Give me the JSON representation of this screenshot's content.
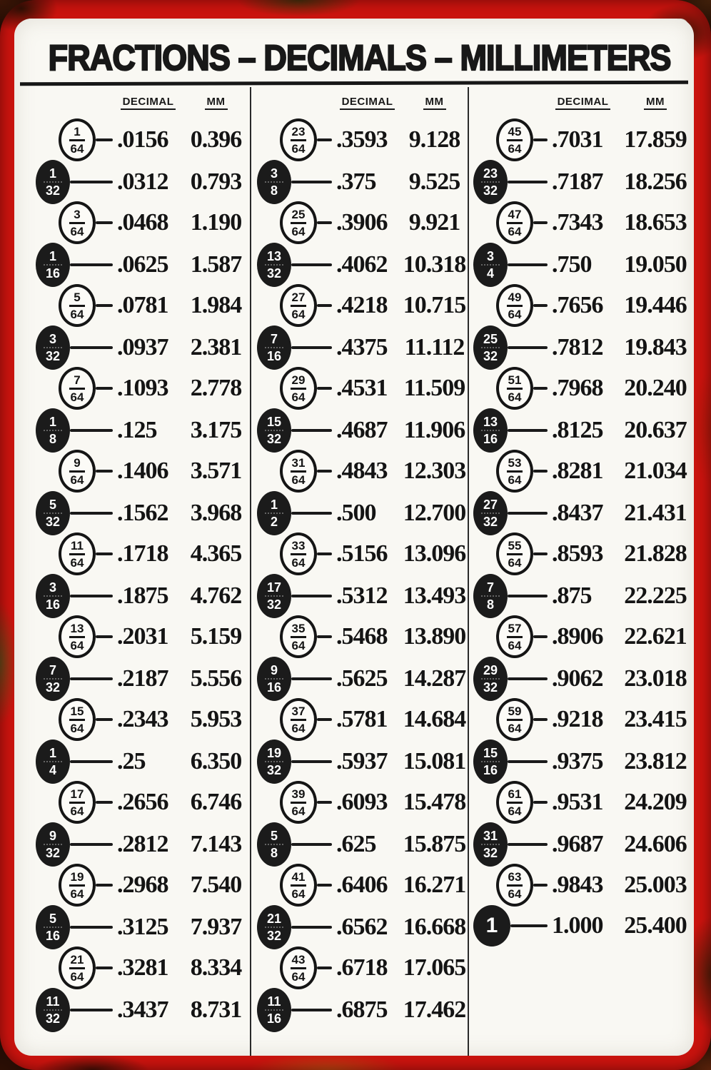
{
  "sign": {
    "title": "FRACTIONS – DECIMALS – MILLIMETERS",
    "col_headers": {
      "decimal": "DECIMAL",
      "mm": "MM"
    },
    "colors": {
      "frame_red": "#c9130e",
      "panel": "#f9f8f3",
      "ink": "#171717"
    },
    "columns": [
      {
        "rows": [
          {
            "num": "1",
            "den": "64",
            "style": "open",
            "decimal": ".0156",
            "mm": "0.396"
          },
          {
            "num": "1",
            "den": "32",
            "style": "filled",
            "decimal": ".0312",
            "mm": "0.793"
          },
          {
            "num": "3",
            "den": "64",
            "style": "open",
            "decimal": ".0468",
            "mm": "1.190"
          },
          {
            "num": "1",
            "den": "16",
            "style": "filled",
            "decimal": ".0625",
            "mm": "1.587"
          },
          {
            "num": "5",
            "den": "64",
            "style": "open",
            "decimal": ".0781",
            "mm": "1.984"
          },
          {
            "num": "3",
            "den": "32",
            "style": "filled",
            "decimal": ".0937",
            "mm": "2.381"
          },
          {
            "num": "7",
            "den": "64",
            "style": "open",
            "decimal": ".1093",
            "mm": "2.778"
          },
          {
            "num": "1",
            "den": "8",
            "style": "filled",
            "decimal": ".125",
            "mm": "3.175"
          },
          {
            "num": "9",
            "den": "64",
            "style": "open",
            "decimal": ".1406",
            "mm": "3.571"
          },
          {
            "num": "5",
            "den": "32",
            "style": "filled",
            "decimal": ".1562",
            "mm": "3.968"
          },
          {
            "num": "11",
            "den": "64",
            "style": "open",
            "decimal": ".1718",
            "mm": "4.365"
          },
          {
            "num": "3",
            "den": "16",
            "style": "filled",
            "decimal": ".1875",
            "mm": "4.762"
          },
          {
            "num": "13",
            "den": "64",
            "style": "open",
            "decimal": ".2031",
            "mm": "5.159"
          },
          {
            "num": "7",
            "den": "32",
            "style": "filled",
            "decimal": ".2187",
            "mm": "5.556"
          },
          {
            "num": "15",
            "den": "64",
            "style": "open",
            "decimal": ".2343",
            "mm": "5.953"
          },
          {
            "num": "1",
            "den": "4",
            "style": "filled",
            "decimal": ".25",
            "mm": "6.350"
          },
          {
            "num": "17",
            "den": "64",
            "style": "open",
            "decimal": ".2656",
            "mm": "6.746"
          },
          {
            "num": "9",
            "den": "32",
            "style": "filled",
            "decimal": ".2812",
            "mm": "7.143"
          },
          {
            "num": "19",
            "den": "64",
            "style": "open",
            "decimal": ".2968",
            "mm": "7.540"
          },
          {
            "num": "5",
            "den": "16",
            "style": "filled",
            "decimal": ".3125",
            "mm": "7.937"
          },
          {
            "num": "21",
            "den": "64",
            "style": "open",
            "decimal": ".3281",
            "mm": "8.334"
          },
          {
            "num": "11",
            "den": "32",
            "style": "filled",
            "decimal": ".3437",
            "mm": "8.731"
          }
        ]
      },
      {
        "rows": [
          {
            "num": "23",
            "den": "64",
            "style": "open",
            "decimal": ".3593",
            "mm": "9.128"
          },
          {
            "num": "3",
            "den": "8",
            "style": "filled",
            "decimal": ".375",
            "mm": "9.525"
          },
          {
            "num": "25",
            "den": "64",
            "style": "open",
            "decimal": ".3906",
            "mm": "9.921"
          },
          {
            "num": "13",
            "den": "32",
            "style": "filled",
            "decimal": ".4062",
            "mm": "10.318"
          },
          {
            "num": "27",
            "den": "64",
            "style": "open",
            "decimal": ".4218",
            "mm": "10.715"
          },
          {
            "num": "7",
            "den": "16",
            "style": "filled",
            "decimal": ".4375",
            "mm": "11.112"
          },
          {
            "num": "29",
            "den": "64",
            "style": "open",
            "decimal": ".4531",
            "mm": "11.509"
          },
          {
            "num": "15",
            "den": "32",
            "style": "filled",
            "decimal": ".4687",
            "mm": "11.906"
          },
          {
            "num": "31",
            "den": "64",
            "style": "open",
            "decimal": ".4843",
            "mm": "12.303"
          },
          {
            "num": "1",
            "den": "2",
            "style": "filled",
            "decimal": ".500",
            "mm": "12.700"
          },
          {
            "num": "33",
            "den": "64",
            "style": "open",
            "decimal": ".5156",
            "mm": "13.096"
          },
          {
            "num": "17",
            "den": "32",
            "style": "filled",
            "decimal": ".5312",
            "mm": "13.493"
          },
          {
            "num": "35",
            "den": "64",
            "style": "open",
            "decimal": ".5468",
            "mm": "13.890"
          },
          {
            "num": "9",
            "den": "16",
            "style": "filled",
            "decimal": ".5625",
            "mm": "14.287"
          },
          {
            "num": "37",
            "den": "64",
            "style": "open",
            "decimal": ".5781",
            "mm": "14.684"
          },
          {
            "num": "19",
            "den": "32",
            "style": "filled",
            "decimal": ".5937",
            "mm": "15.081"
          },
          {
            "num": "39",
            "den": "64",
            "style": "open",
            "decimal": ".6093",
            "mm": "15.478"
          },
          {
            "num": "5",
            "den": "8",
            "style": "filled",
            "decimal": ".625",
            "mm": "15.875"
          },
          {
            "num": "41",
            "den": "64",
            "style": "open",
            "decimal": ".6406",
            "mm": "16.271"
          },
          {
            "num": "21",
            "den": "32",
            "style": "filled",
            "decimal": ".6562",
            "mm": "16.668"
          },
          {
            "num": "43",
            "den": "64",
            "style": "open",
            "decimal": ".6718",
            "mm": "17.065"
          },
          {
            "num": "11",
            "den": "16",
            "style": "filled",
            "decimal": ".6875",
            "mm": "17.462"
          }
        ]
      },
      {
        "rows": [
          {
            "num": "45",
            "den": "64",
            "style": "open",
            "decimal": ".7031",
            "mm": "17.859"
          },
          {
            "num": "23",
            "den": "32",
            "style": "filled",
            "decimal": ".7187",
            "mm": "18.256"
          },
          {
            "num": "47",
            "den": "64",
            "style": "open",
            "decimal": ".7343",
            "mm": "18.653"
          },
          {
            "num": "3",
            "den": "4",
            "style": "filled",
            "decimal": ".750",
            "mm": "19.050"
          },
          {
            "num": "49",
            "den": "64",
            "style": "open",
            "decimal": ".7656",
            "mm": "19.446"
          },
          {
            "num": "25",
            "den": "32",
            "style": "filled",
            "decimal": ".7812",
            "mm": "19.843"
          },
          {
            "num": "51",
            "den": "64",
            "style": "open",
            "decimal": ".7968",
            "mm": "20.240"
          },
          {
            "num": "13",
            "den": "16",
            "style": "filled",
            "decimal": ".8125",
            "mm": "20.637"
          },
          {
            "num": "53",
            "den": "64",
            "style": "open",
            "decimal": ".8281",
            "mm": "21.034"
          },
          {
            "num": "27",
            "den": "32",
            "style": "filled",
            "decimal": ".8437",
            "mm": "21.431"
          },
          {
            "num": "55",
            "den": "64",
            "style": "open",
            "decimal": ".8593",
            "mm": "21.828"
          },
          {
            "num": "7",
            "den": "8",
            "style": "filled",
            "decimal": ".875",
            "mm": "22.225"
          },
          {
            "num": "57",
            "den": "64",
            "style": "open",
            "decimal": ".8906",
            "mm": "22.621"
          },
          {
            "num": "29",
            "den": "32",
            "style": "filled",
            "decimal": ".9062",
            "mm": "23.018"
          },
          {
            "num": "59",
            "den": "64",
            "style": "open",
            "decimal": ".9218",
            "mm": "23.415"
          },
          {
            "num": "15",
            "den": "16",
            "style": "filled",
            "decimal": ".9375",
            "mm": "23.812"
          },
          {
            "num": "61",
            "den": "64",
            "style": "open",
            "decimal": ".9531",
            "mm": "24.209"
          },
          {
            "num": "31",
            "den": "32",
            "style": "filled",
            "decimal": ".9687",
            "mm": "24.606"
          },
          {
            "num": "63",
            "den": "64",
            "style": "open",
            "decimal": ".9843",
            "mm": "25.003"
          },
          {
            "num": "1",
            "den": null,
            "style": "whole",
            "decimal": "1.000",
            "mm": "25.400"
          }
        ]
      }
    ]
  },
  "chart_data": {
    "type": "table",
    "title": "FRACTIONS – DECIMALS – MILLIMETERS",
    "columns": [
      "fraction",
      "decimal",
      "mm"
    ],
    "rows": [
      [
        "1/64",
        ".0156",
        "0.396"
      ],
      [
        "1/32",
        ".0312",
        "0.793"
      ],
      [
        "3/64",
        ".0468",
        "1.190"
      ],
      [
        "1/16",
        ".0625",
        "1.587"
      ],
      [
        "5/64",
        ".0781",
        "1.984"
      ],
      [
        "3/32",
        ".0937",
        "2.381"
      ],
      [
        "7/64",
        ".1093",
        "2.778"
      ],
      [
        "1/8",
        ".125",
        "3.175"
      ],
      [
        "9/64",
        ".1406",
        "3.571"
      ],
      [
        "5/32",
        ".1562",
        "3.968"
      ],
      [
        "11/64",
        ".1718",
        "4.365"
      ],
      [
        "3/16",
        ".1875",
        "4.762"
      ],
      [
        "13/64",
        ".2031",
        "5.159"
      ],
      [
        "7/32",
        ".2187",
        "5.556"
      ],
      [
        "15/64",
        ".2343",
        "5.953"
      ],
      [
        "1/4",
        ".25",
        "6.350"
      ],
      [
        "17/64",
        ".2656",
        "6.746"
      ],
      [
        "9/32",
        ".2812",
        "7.143"
      ],
      [
        "19/64",
        ".2968",
        "7.540"
      ],
      [
        "5/16",
        ".3125",
        "7.937"
      ],
      [
        "21/64",
        ".3281",
        "8.334"
      ],
      [
        "11/32",
        ".3437",
        "8.731"
      ],
      [
        "23/64",
        ".3593",
        "9.128"
      ],
      [
        "3/8",
        ".375",
        "9.525"
      ],
      [
        "25/64",
        ".3906",
        "9.921"
      ],
      [
        "13/32",
        ".4062",
        "10.318"
      ],
      [
        "27/64",
        ".4218",
        "10.715"
      ],
      [
        "7/16",
        ".4375",
        "11.112"
      ],
      [
        "29/64",
        ".4531",
        "11.509"
      ],
      [
        "15/32",
        ".4687",
        "11.906"
      ],
      [
        "31/64",
        ".4843",
        "12.303"
      ],
      [
        "1/2",
        ".500",
        "12.700"
      ],
      [
        "33/64",
        ".5156",
        "13.096"
      ],
      [
        "17/32",
        ".5312",
        "13.493"
      ],
      [
        "35/64",
        ".5468",
        "13.890"
      ],
      [
        "9/16",
        ".5625",
        "14.287"
      ],
      [
        "37/64",
        ".5781",
        "14.684"
      ],
      [
        "19/32",
        ".5937",
        "15.081"
      ],
      [
        "39/64",
        ".6093",
        "15.478"
      ],
      [
        "5/8",
        ".625",
        "15.875"
      ],
      [
        "41/64",
        ".6406",
        "16.271"
      ],
      [
        "21/32",
        ".6562",
        "16.668"
      ],
      [
        "43/64",
        ".6718",
        "17.065"
      ],
      [
        "11/16",
        ".6875",
        "17.462"
      ],
      [
        "45/64",
        ".7031",
        "17.859"
      ],
      [
        "23/32",
        ".7187",
        "18.256"
      ],
      [
        "47/64",
        ".7343",
        "18.653"
      ],
      [
        "3/4",
        ".750",
        "19.050"
      ],
      [
        "49/64",
        ".7656",
        "19.446"
      ],
      [
        "25/32",
        ".7812",
        "19.843"
      ],
      [
        "51/64",
        ".7968",
        "20.240"
      ],
      [
        "13/16",
        ".8125",
        "20.637"
      ],
      [
        "53/64",
        ".8281",
        "21.034"
      ],
      [
        "27/32",
        ".8437",
        "21.431"
      ],
      [
        "55/64",
        ".8593",
        "21.828"
      ],
      [
        "7/8",
        ".875",
        "22.225"
      ],
      [
        "57/64",
        ".8906",
        "22.621"
      ],
      [
        "29/32",
        ".9062",
        "23.018"
      ],
      [
        "59/64",
        ".9218",
        "23.415"
      ],
      [
        "15/16",
        ".9375",
        "23.812"
      ],
      [
        "61/64",
        ".9531",
        "24.209"
      ],
      [
        "31/32",
        ".9687",
        "24.606"
      ],
      [
        "63/64",
        ".9843",
        "25.003"
      ],
      [
        "1",
        "1.000",
        "25.400"
      ]
    ]
  }
}
